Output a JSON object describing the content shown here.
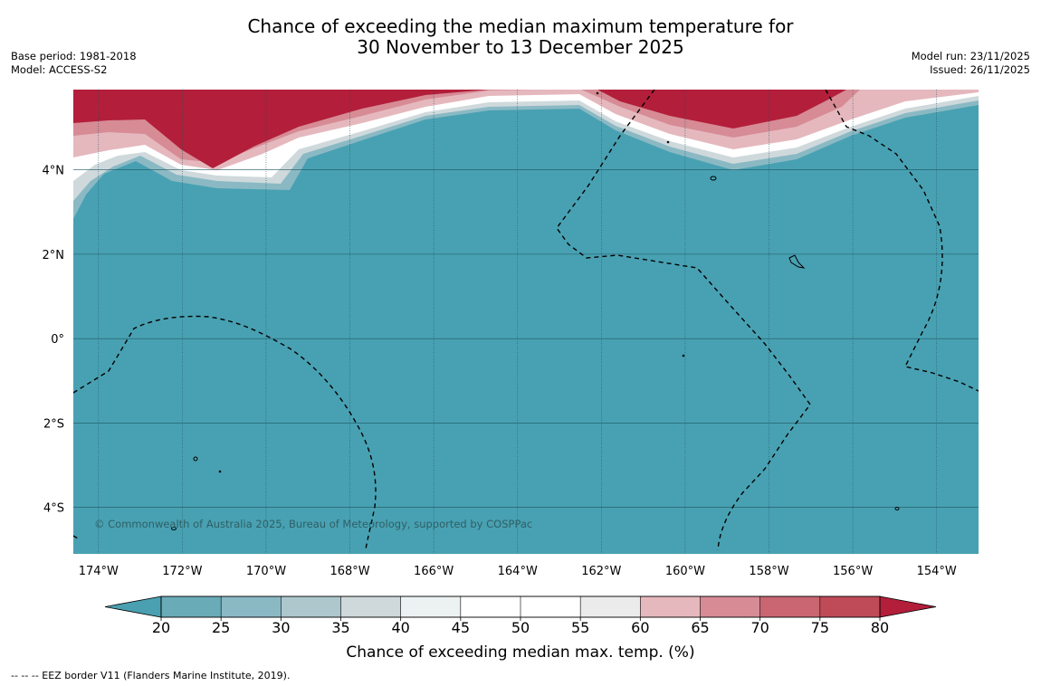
{
  "title": {
    "line1": "Chance of exceeding the median maximum temperature for",
    "line2": "30 November to 13 December 2025"
  },
  "meta_left": {
    "base_period": "Base period: 1981-2018",
    "model": "Model: ACCESS-S2"
  },
  "meta_right": {
    "model_run": "Model run: 23/11/2025",
    "issued": "Issued: 26/11/2025"
  },
  "map": {
    "extent": {
      "lon_min": -174.6,
      "lon_max": -153.0,
      "lat_min": -5.1,
      "lat_max": 5.9
    },
    "lon_ticks": [
      {
        "lon": -174,
        "label": "174°W"
      },
      {
        "lon": -172,
        "label": "172°W"
      },
      {
        "lon": -170,
        "label": "170°W"
      },
      {
        "lon": -168,
        "label": "168°W"
      },
      {
        "lon": -166,
        "label": "166°W"
      },
      {
        "lon": -164,
        "label": "164°W"
      },
      {
        "lon": -162,
        "label": "162°W"
      },
      {
        "lon": -160,
        "label": "160°W"
      },
      {
        "lon": -158,
        "label": "158°W"
      },
      {
        "lon": -156,
        "label": "156°W"
      },
      {
        "lon": -154,
        "label": "154°W"
      }
    ],
    "lat_ticks": [
      {
        "lat": 4,
        "label": "4°N"
      },
      {
        "lat": 2,
        "label": "2°N"
      },
      {
        "lat": 0,
        "label": "0°"
      },
      {
        "lat": -2,
        "label": "2°S"
      },
      {
        "lat": -4,
        "label": "4°S"
      }
    ],
    "copyright": "© Commonwealth of Australia 2025, Bureau of Meteorology, supported by COSPPac"
  },
  "colorbar": {
    "ticks": [
      "20",
      "25",
      "30",
      "35",
      "40",
      "45",
      "50",
      "55",
      "60",
      "65",
      "70",
      "75",
      "80"
    ],
    "colors": [
      "#6aabb8",
      "#8ab9c4",
      "#adc7cd",
      "#cfd9dc",
      "#ecf1f2",
      "#ffffff",
      "#ffffff",
      "#ebebeb",
      "#e5b8be",
      "#d68b95",
      "#c96671",
      "#bf4a58"
    ],
    "under_color": "#4aa0b1",
    "over_color": "#b31e3a",
    "label": "Chance of exceeding median max. temp. (%)"
  },
  "colors": {
    "low_fill": "#48a1b2",
    "high_fill": "#b31e3a"
  },
  "footer": "--  --  -- EEZ border V11 (Flanders Marine Institute, 2019)."
}
